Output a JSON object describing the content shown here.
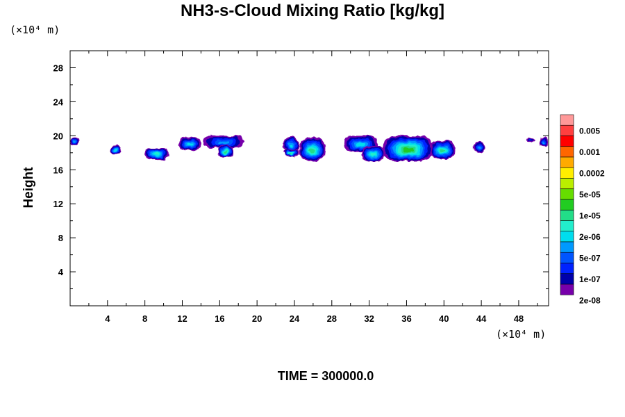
{
  "chart_data": {
    "type": "heatmap",
    "title": "NH3-s-Cloud Mixing Ratio [kg/kg]",
    "ylabel": "Height",
    "x_unit_label": "(×10⁴ m)",
    "y_unit_label": "(×10⁴ m)",
    "footer": "TIME = 300000.0",
    "xlim": [
      0,
      51.2
    ],
    "ylim": [
      0,
      30
    ],
    "x_ticks": [
      "4",
      "8",
      "12",
      "16",
      "20",
      "24",
      "28",
      "32",
      "36",
      "40",
      "44",
      "48"
    ],
    "y_ticks": [
      "4",
      "8",
      "12",
      "16",
      "20",
      "24",
      "28"
    ],
    "legend": {
      "labels": [
        "0.005",
        "0.001",
        "0.0002",
        "5e-05",
        "1e-05",
        "2e-06",
        "5e-07",
        "1e-07",
        "2e-08"
      ],
      "colors": [
        "#FF9999",
        "#FF4040",
        "#FF0000",
        "#FF6600",
        "#FFAA00",
        "#FFEE00",
        "#BBEE00",
        "#66DD00",
        "#22CC22",
        "#22DD88",
        "#22EECC",
        "#00DDEE",
        "#0099FF",
        "#0055FF",
        "#0022FF",
        "#0000AA",
        "#7700AA"
      ]
    },
    "clouds": [
      {
        "x0": 0.0,
        "x1": 1.0,
        "y0": 18.9,
        "y1": 19.8,
        "level": 4
      },
      {
        "x0": 4.3,
        "x1": 5.4,
        "y0": 17.8,
        "y1": 18.9,
        "level": 5
      },
      {
        "x0": 8.0,
        "x1": 10.5,
        "y0": 17.2,
        "y1": 18.6,
        "level": 6
      },
      {
        "x0": 11.6,
        "x1": 14.0,
        "y0": 18.3,
        "y1": 19.8,
        "level": 5
      },
      {
        "x0": 14.3,
        "x1": 18.5,
        "y0": 18.6,
        "y1": 20.0,
        "level": 4
      },
      {
        "x0": 15.8,
        "x1": 17.5,
        "y0": 17.4,
        "y1": 18.9,
        "level": 7
      },
      {
        "x0": 22.8,
        "x1": 24.5,
        "y0": 18.0,
        "y1": 19.9,
        "level": 5
      },
      {
        "x0": 22.8,
        "x1": 24.5,
        "y0": 17.6,
        "y1": 18.4,
        "level": 7
      },
      {
        "x0": 24.5,
        "x1": 27.3,
        "y0": 17.0,
        "y1": 19.8,
        "level": 7
      },
      {
        "x0": 29.3,
        "x1": 32.9,
        "y0": 18.1,
        "y1": 20.0,
        "level": 5
      },
      {
        "x0": 31.2,
        "x1": 33.7,
        "y0": 17.0,
        "y1": 18.8,
        "level": 6
      },
      {
        "x0": 33.5,
        "x1": 38.8,
        "y0": 17.0,
        "y1": 20.0,
        "level": 8
      },
      {
        "x0": 38.5,
        "x1": 41.2,
        "y0": 17.3,
        "y1": 19.4,
        "level": 7
      },
      {
        "x0": 43.2,
        "x1": 44.3,
        "y0": 18.0,
        "y1": 19.3,
        "level": 4
      },
      {
        "x0": 48.8,
        "x1": 49.6,
        "y0": 19.2,
        "y1": 19.7,
        "level": 2
      },
      {
        "x0": 50.2,
        "x1": 51.2,
        "y0": 18.7,
        "y1": 19.8,
        "level": 4
      }
    ]
  }
}
